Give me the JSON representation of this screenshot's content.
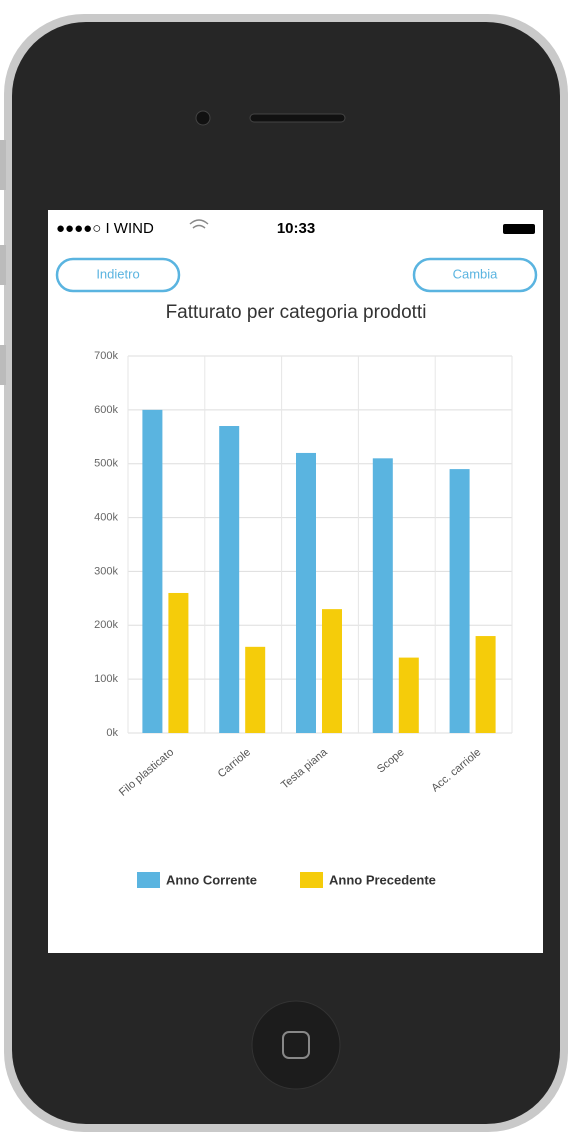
{
  "status_bar": {
    "carrier": "●●●●○ I WIND",
    "time": "10:33"
  },
  "buttons": {
    "back": "Indietro",
    "change": "Cambia"
  },
  "chart_data": {
    "type": "bar",
    "title": "Fatturato per categoria prodotti",
    "categories": [
      "Filo plasticato",
      "Carriole",
      "Testa piana",
      "Scope",
      "Acc. carriole"
    ],
    "series": [
      {
        "name": "Anno Corrente",
        "color": "#5ab4e0",
        "values": [
          600000,
          570000,
          520000,
          510000,
          490000
        ]
      },
      {
        "name": "Anno Precedente",
        "color": "#f5cc0a",
        "values": [
          260000,
          160000,
          230000,
          140000,
          180000
        ]
      }
    ],
    "ylim": [
      0,
      700000
    ],
    "yticks": [
      {
        "value": 0,
        "label": "0k"
      },
      {
        "value": 100000,
        "label": "100k"
      },
      {
        "value": 200000,
        "label": "200k"
      },
      {
        "value": 300000,
        "label": "300k"
      },
      {
        "value": 400000,
        "label": "400k"
      },
      {
        "value": 500000,
        "label": "500k"
      },
      {
        "value": 600000,
        "label": "600k"
      },
      {
        "value": 700000,
        "label": "700k"
      }
    ],
    "grid": true,
    "legend": "bottom"
  }
}
